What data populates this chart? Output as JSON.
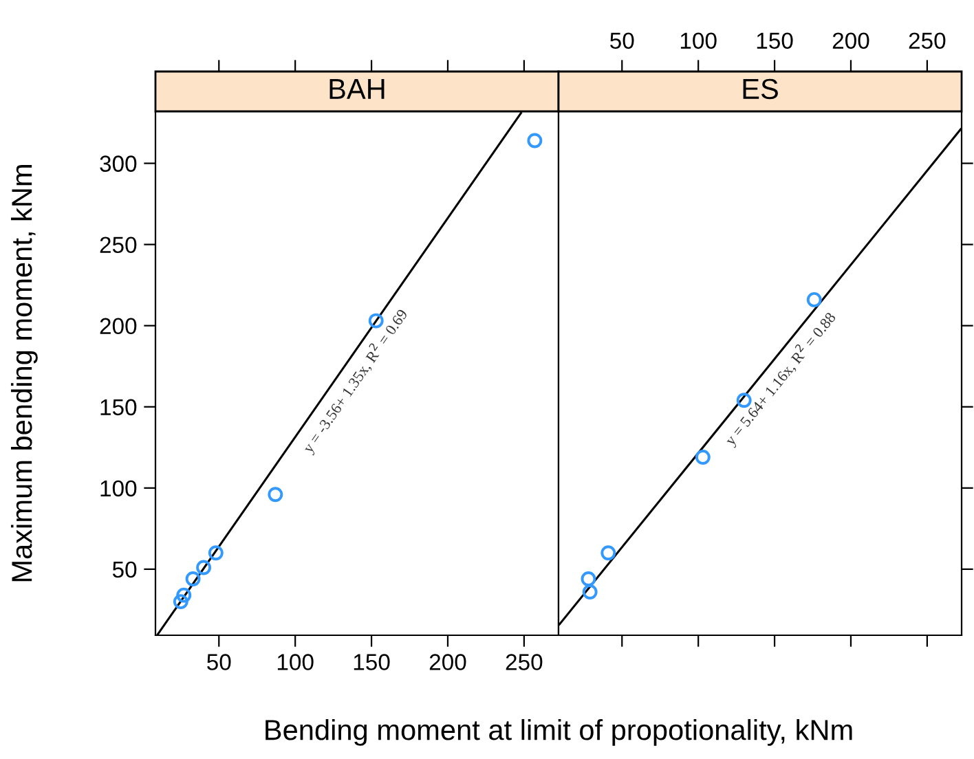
{
  "chart_data": [
    {
      "type": "scatter",
      "title": "BAH",
      "xlabel": "Bending moment at limit of propotionality, kNm",
      "ylabel": "Maximum bending moment, kNm",
      "series": [
        {
          "marker": "circle",
          "color": "#3399ff",
          "x": [
            257,
            153,
            87,
            48,
            40,
            33,
            27,
            25
          ],
          "values": [
            314,
            203,
            96,
            60,
            51,
            44,
            34,
            30
          ]
        },
        {
          "type": "line",
          "color": "#000000",
          "x": [
            10,
            248
          ],
          "values": [
            10,
            331
          ]
        }
      ],
      "xlim": [
        8.4,
        272.6
      ],
      "xticks": [
        50,
        100,
        150,
        200,
        250
      ],
      "ylim": [
        9.3,
        332
      ],
      "yticks": [
        50,
        100,
        150,
        200,
        250,
        300
      ],
      "annotations": [
        {
          "text": "y = -3.56+ 1.35x, R$^{2}$ = 0.69",
          "x": 130,
          "y": 172
        }
      ]
    },
    {
      "type": "scatter",
      "title": "ES",
      "series": [
        {
          "marker": "circle",
          "color": "#3399ff",
          "x": [
            176,
            130,
            103,
            41,
            28,
            29
          ],
          "values": [
            216,
            154,
            119,
            60,
            44,
            36
          ]
        },
        {
          "type": "line",
          "color": "#000000",
          "x": [
            9,
            272
          ],
          "values": [
            16,
            321
          ]
        }
      ],
      "xlim": [
        8.4,
        272.6
      ],
      "xticks": [
        50,
        100,
        150,
        200,
        250
      ],
      "ylim": [
        9.3,
        332
      ],
      "yticks": [
        50,
        100,
        150,
        200,
        250,
        300
      ],
      "tick_labels": "x",
      "annotations": [
        {
          "text": "y = 5.64+ 1.16x, R$^{2}$ = 0.88",
          "x": 145,
          "y": 174
        }
      ]
    }
  ]
}
